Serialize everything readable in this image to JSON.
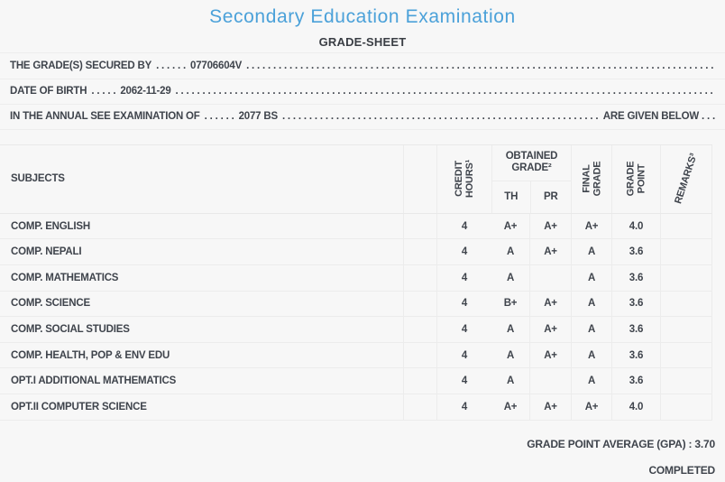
{
  "page": {
    "title": "Secondary Education Examination",
    "subtitle": "GRADE-SHEET"
  },
  "info": {
    "line1": {
      "label": "THE GRADE(S) SECURED BY",
      "dots": ". . . . . .",
      "value": "07706604V",
      "fill": ". . . . . . . . . . . . . . . . . . . . . . . . . . . . . . . . . . . . . . . . . . . . . . . . . . . . . . . . . . . . . . . . . . . . . . . . . . . . . . . . . . . . . . . . . . . . . . . . . . . . . . . . . . . . . . . . . . . . . . . ."
    },
    "line2": {
      "label": "DATE OF BIRTH",
      "dots": ". . . . .",
      "value": "2062-11-29",
      "fill": ". . . . . . . . . . . . . . . . . . . . . . . . . . . . . . . . . . . . . . . . . . . . . . . . . . . . . . . . . . . . . . . . . . . . . . . . . . . . . . . . . . . . . . . . . . . . . . . . . . . . . . . . . . . . . . . . . . . . . . . ."
    },
    "line3": {
      "label": "IN THE ANNUAL SEE EXAMINATION OF",
      "dots": ". . . . . .",
      "value": "2077 BS",
      "fill": ". . . . . . . . . . . . . . . . . . . . . . . . . . . . . . . . . . . . . . . . . . . . . . . . . . . . . . . . . . . . . . . . . . . . . . . . . . . . . . . . . . . . . . . . . . . . . . . . . . . . . . . . . . . . . . . . . . . . . . . .",
      "suffix": "ARE GIVEN BELOW . . ."
    }
  },
  "table": {
    "headers": {
      "subjects": "SUBJECTS",
      "credit": [
        "CREDIT",
        "HOURS¹"
      ],
      "obtained": [
        "OBTAINED",
        "GRADE²"
      ],
      "th": "TH",
      "pr": "PR",
      "final": [
        "FINAL",
        "GRADE"
      ],
      "grade_point": [
        "GRADE",
        "POINT"
      ],
      "remarks": "REMARKS³"
    },
    "rows": [
      {
        "subject": "COMP. ENGLISH",
        "credit": "4",
        "th": "A+",
        "pr": "A+",
        "final": "A+",
        "gp": "4.0",
        "remarks": ""
      },
      {
        "subject": "COMP. NEPALI",
        "credit": "4",
        "th": "A",
        "pr": "A+",
        "final": "A",
        "gp": "3.6",
        "remarks": ""
      },
      {
        "subject": "COMP. MATHEMATICS",
        "credit": "4",
        "th": "A",
        "pr": "",
        "final": "A",
        "gp": "3.6",
        "remarks": ""
      },
      {
        "subject": "COMP. SCIENCE",
        "credit": "4",
        "th": "B+",
        "pr": "A+",
        "final": "A",
        "gp": "3.6",
        "remarks": ""
      },
      {
        "subject": "COMP. SOCIAL STUDIES",
        "credit": "4",
        "th": "A",
        "pr": "A+",
        "final": "A",
        "gp": "3.6",
        "remarks": ""
      },
      {
        "subject": "COMP. HEALTH, POP & ENV EDU",
        "credit": "4",
        "th": "A",
        "pr": "A+",
        "final": "A",
        "gp": "3.6",
        "remarks": ""
      },
      {
        "subject": "OPT.I ADDITIONAL MATHEMATICS",
        "credit": "4",
        "th": "A",
        "pr": "",
        "final": "A",
        "gp": "3.6",
        "remarks": ""
      },
      {
        "subject": "OPT.II COMPUTER SCIENCE",
        "credit": "4",
        "th": "A+",
        "pr": "A+",
        "final": "A+",
        "gp": "4.0",
        "remarks": ""
      }
    ]
  },
  "summary": {
    "gpa": "GRADE POINT AVERAGE (GPA) : 3.70",
    "status": "COMPLETED"
  },
  "colors": {
    "accent": "#4ba1d9",
    "text": "#3f444c",
    "border": "#ececec",
    "background": "#f7f7f7"
  }
}
